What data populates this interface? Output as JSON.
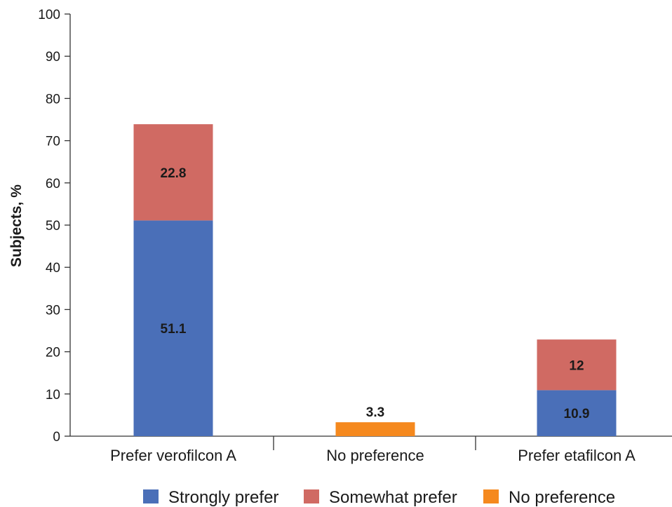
{
  "chart_data": {
    "type": "bar",
    "stacked": true,
    "categories": [
      "Prefer verofilcon A",
      "No preference",
      "Prefer etafilcon A"
    ],
    "series": [
      {
        "name": "Strongly prefer",
        "color": "#4a6fb8",
        "values": [
          51.1,
          null,
          10.9
        ]
      },
      {
        "name": "Somewhat prefer",
        "color": "#d06a63",
        "values": [
          22.8,
          null,
          12
        ]
      },
      {
        "name": "No preference",
        "color": "#f5891e",
        "values": [
          null,
          3.3,
          null
        ]
      }
    ],
    "data_labels": [
      [
        "51.1",
        "",
        "10.9"
      ],
      [
        "22.8",
        "",
        "12"
      ],
      [
        "",
        "3.3",
        ""
      ]
    ],
    "title": "",
    "xlabel": "",
    "ylabel": "Subjects, %",
    "ylim": [
      0,
      100
    ],
    "yticks": [
      0,
      10,
      20,
      30,
      40,
      50,
      60,
      70,
      80,
      90,
      100
    ],
    "ytick_labels": [
      "0",
      "10",
      "20",
      "30",
      "40",
      "50",
      "60",
      "70",
      "80",
      "90",
      "100"
    ],
    "grid": false,
    "legend_position": "bottom"
  }
}
